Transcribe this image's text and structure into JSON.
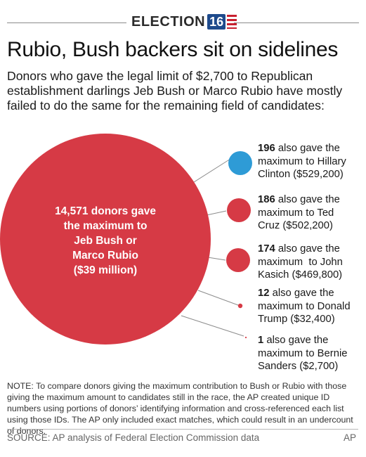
{
  "header": {
    "badge_word": "ELECTION",
    "badge_number": "16",
    "colors": {
      "navy": "#1e4a8c",
      "red": "#c8202f"
    }
  },
  "title": "Rubio, Bush backers sit on sidelines",
  "subtitle": "Donors who gave the legal limit of $2,700 to Republican establishment darlings Jeb Bush or Marco Rubio have mostly failed to do the same for the remaining field of candidates:",
  "main_circle": {
    "donors": 14571,
    "amount_millions": 39,
    "label_lines": [
      "14,571 donors gave",
      "the maximum to",
      "Jeb Bush or",
      "Marco Rubio",
      "($39 million)"
    ],
    "color": "#d63a45"
  },
  "callouts": [
    {
      "candidate": "Hillary Clinton",
      "count_text": "196",
      "count": 196,
      "amount": 529200,
      "lines": [
        "also gave the",
        "maximum to Hillary",
        "Clinton ($529,200)"
      ],
      "color": "#2e9bd6"
    },
    {
      "candidate": "Ted Cruz",
      "count_text": "186",
      "count": 186,
      "amount": 502200,
      "lines": [
        "also gave the",
        "maximum to Ted",
        "Cruz ($502,200)"
      ],
      "color": "#d63a45"
    },
    {
      "candidate": "John Kasich",
      "count_text": "174",
      "count": 174,
      "amount": 469800,
      "lines": [
        "also gave the",
        "maximum  to John",
        "Kasich ($469,800)"
      ],
      "color": "#d63a45"
    },
    {
      "candidate": "Donald Trump",
      "count_text": "12",
      "count": 12,
      "amount": 32400,
      "lines": [
        "also gave the",
        "maximum to Donald",
        "Trump ($32,400)"
      ],
      "color": "#d63a45"
    },
    {
      "candidate": "Bernie Sanders",
      "count_text": "1",
      "count": 1,
      "amount": 2700,
      "lines": [
        "also gave the",
        "maximum to Bernie",
        "Sanders ($2,700)"
      ],
      "color": "#d63a45"
    }
  ],
  "note": "NOTE: To compare donors giving the maximum contribution to Bush or Rubio with those giving the maximum amount to candidates still in the race, the AP created unique ID numbers using portions of donors’ identifying information and cross-referenced each list using those IDs. The AP only included exact matches, which could result in an undercount of donors.",
  "source": "SOURCE: AP analysis of Federal Election Commission data",
  "credit": "AP"
}
